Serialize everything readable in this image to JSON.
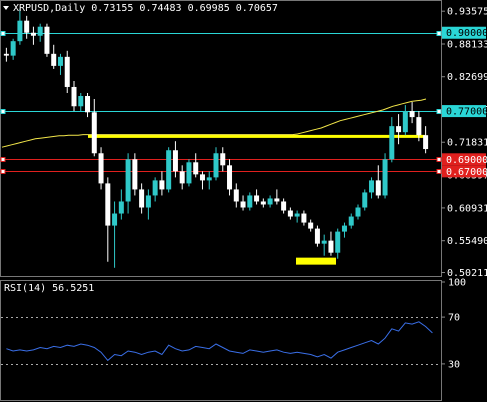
{
  "chart_data": [
    {
      "type": "candlestick",
      "symbol": "XRPUSD",
      "timeframe": "Daily",
      "header_text": "XRPUSD,Daily  0.73155 0.74483 0.69985 0.70657",
      "ohlc_last": {
        "open": 0.73155,
        "high": 0.74483,
        "low": 0.69985,
        "close": 0.70657
      },
      "price_range": [
        0.498,
        0.951
      ],
      "y_tick_labels": [
        "0.93575",
        "0.88133",
        "0.82699",
        "0.77265",
        "0.71831",
        "0.66397",
        "0.60931",
        "0.55490",
        "0.50211"
      ],
      "y_tick_values": [
        0.93575,
        0.88133,
        0.82699,
        0.77265,
        0.71831,
        0.66397,
        0.60931,
        0.5549,
        0.50211
      ],
      "horizontal_levels": [
        {
          "value": 0.9,
          "label": "0.90000",
          "color": "#2ad6d6"
        },
        {
          "value": 0.77,
          "label": "0.77000",
          "color": "#2ad6d6"
        },
        {
          "value": 0.69,
          "label": "0.69000",
          "color": "#e0201e"
        },
        {
          "value": 0.67,
          "label": "0.67000",
          "color": "#e0201e"
        }
      ],
      "zones": [
        {
          "from": 0,
          "to": 80,
          "value": 0.728,
          "color": "#ffff00"
        },
        {
          "from": 66,
          "to": 74,
          "value": 0.521,
          "color": "#ffff00"
        }
      ],
      "moving_average": [
        0.71,
        0.712,
        0.714,
        0.716,
        0.718,
        0.72,
        0.722,
        0.724,
        0.725,
        0.726,
        0.727,
        0.728,
        0.729,
        0.729,
        0.73,
        0.73,
        0.73,
        0.731,
        0.731,
        0.731,
        0.731,
        0.731,
        0.731,
        0.731,
        0.731,
        0.731,
        0.731,
        0.731,
        0.731,
        0.731,
        0.731,
        0.731,
        0.731,
        0.731,
        0.731,
        0.731,
        0.731,
        0.731,
        0.731,
        0.731,
        0.731,
        0.731,
        0.731,
        0.731,
        0.731,
        0.731,
        0.731,
        0.731,
        0.731,
        0.731,
        0.731,
        0.731,
        0.731,
        0.731,
        0.731,
        0.731,
        0.731,
        0.731,
        0.731,
        0.731,
        0.731,
        0.731,
        0.732,
        0.734,
        0.736,
        0.738,
        0.74,
        0.742,
        0.745,
        0.748,
        0.751,
        0.754,
        0.756,
        0.758,
        0.76,
        0.762,
        0.764,
        0.766,
        0.768,
        0.77,
        0.772,
        0.775,
        0.778,
        0.78,
        0.782,
        0.784,
        0.786,
        0.787,
        0.788,
        0.79
      ],
      "ma_color": "#f2e64a",
      "bull_color": "#2fc9c9",
      "bear_color": "#ffffff",
      "candles": [
        [
          0.865,
          0.875,
          0.852,
          0.862
        ],
        [
          0.862,
          0.89,
          0.855,
          0.886
        ],
        [
          0.886,
          0.94,
          0.88,
          0.92
        ],
        [
          0.92,
          0.928,
          0.89,
          0.9
        ],
        [
          0.9,
          0.91,
          0.88,
          0.895
        ],
        [
          0.895,
          0.915,
          0.885,
          0.91
        ],
        [
          0.91,
          0.915,
          0.86,
          0.865
        ],
        [
          0.865,
          0.88,
          0.84,
          0.845
        ],
        [
          0.845,
          0.865,
          0.83,
          0.86
        ],
        [
          0.86,
          0.87,
          0.8,
          0.81
        ],
        [
          0.81,
          0.82,
          0.77,
          0.778
        ],
        [
          0.778,
          0.8,
          0.77,
          0.795
        ],
        [
          0.795,
          0.8,
          0.76,
          0.768
        ],
        [
          0.768,
          0.79,
          0.695,
          0.7
        ],
        [
          0.7,
          0.71,
          0.64,
          0.65
        ],
        [
          0.65,
          0.66,
          0.52,
          0.58
        ],
        [
          0.58,
          0.62,
          0.51,
          0.6
        ],
        [
          0.6,
          0.64,
          0.59,
          0.62
        ],
        [
          0.62,
          0.7,
          0.6,
          0.69
        ],
        [
          0.69,
          0.7,
          0.63,
          0.64
        ],
        [
          0.64,
          0.65,
          0.6,
          0.61
        ],
        [
          0.61,
          0.64,
          0.59,
          0.63
        ],
        [
          0.63,
          0.66,
          0.62,
          0.655
        ],
        [
          0.655,
          0.67,
          0.63,
          0.64
        ],
        [
          0.64,
          0.71,
          0.635,
          0.705
        ],
        [
          0.705,
          0.72,
          0.66,
          0.67
        ],
        [
          0.67,
          0.68,
          0.64,
          0.65
        ],
        [
          0.65,
          0.69,
          0.645,
          0.685
        ],
        [
          0.685,
          0.7,
          0.66,
          0.665
        ],
        [
          0.665,
          0.67,
          0.64,
          0.655
        ],
        [
          0.655,
          0.67,
          0.64,
          0.66
        ],
        [
          0.66,
          0.71,
          0.655,
          0.7
        ],
        [
          0.7,
          0.71,
          0.67,
          0.68
        ],
        [
          0.68,
          0.69,
          0.63,
          0.64
        ],
        [
          0.64,
          0.65,
          0.61,
          0.62
        ],
        [
          0.62,
          0.63,
          0.605,
          0.61
        ],
        [
          0.61,
          0.635,
          0.605,
          0.63
        ],
        [
          0.63,
          0.64,
          0.615,
          0.62
        ],
        [
          0.62,
          0.625,
          0.61,
          0.615
        ],
        [
          0.615,
          0.63,
          0.61,
          0.625
        ],
        [
          0.625,
          0.64,
          0.615,
          0.62
        ],
        [
          0.62,
          0.625,
          0.6,
          0.605
        ],
        [
          0.605,
          0.61,
          0.59,
          0.595
        ],
        [
          0.595,
          0.605,
          0.585,
          0.6
        ],
        [
          0.6,
          0.605,
          0.58,
          0.585
        ],
        [
          0.585,
          0.59,
          0.57,
          0.575
        ],
        [
          0.575,
          0.58,
          0.545,
          0.55
        ],
        [
          0.55,
          0.565,
          0.53,
          0.555
        ],
        [
          0.555,
          0.57,
          0.53,
          0.535
        ],
        [
          0.535,
          0.575,
          0.525,
          0.57
        ],
        [
          0.57,
          0.585,
          0.56,
          0.58
        ],
        [
          0.58,
          0.6,
          0.575,
          0.595
        ],
        [
          0.595,
          0.615,
          0.59,
          0.61
        ],
        [
          0.61,
          0.64,
          0.605,
          0.635
        ],
        [
          0.635,
          0.66,
          0.625,
          0.655
        ],
        [
          0.655,
          0.68,
          0.625,
          0.63
        ],
        [
          0.63,
          0.7,
          0.625,
          0.69
        ],
        [
          0.69,
          0.76,
          0.685,
          0.745
        ],
        [
          0.745,
          0.765,
          0.715,
          0.735
        ],
        [
          0.735,
          0.78,
          0.73,
          0.77
        ],
        [
          0.77,
          0.785,
          0.75,
          0.76
        ],
        [
          0.76,
          0.77,
          0.72,
          0.73
        ],
        [
          0.73,
          0.745,
          0.7,
          0.707
        ]
      ],
      "grid": false,
      "background": "#000000"
    },
    {
      "type": "line",
      "title": "RSI(14) 56.5251",
      "y_tick_labels": [
        "100",
        "70",
        "30"
      ],
      "y_tick_values": [
        100,
        70,
        30
      ],
      "ylim": [
        0,
        100
      ],
      "reference_levels": [
        70,
        30
      ],
      "line_color": "#3a6fe8",
      "values": [
        43,
        41,
        42,
        41,
        42,
        44,
        43,
        45,
        44,
        46,
        45,
        47,
        46,
        44,
        40,
        33,
        38,
        37,
        41,
        40,
        38,
        40,
        41,
        38,
        46,
        43,
        41,
        42,
        45,
        44,
        43,
        47,
        44,
        41,
        40,
        39,
        42,
        41,
        40,
        41,
        42,
        40,
        39,
        40,
        39,
        38,
        36,
        38,
        35,
        40,
        42,
        44,
        46,
        48,
        50,
        47,
        52,
        60,
        58,
        65,
        64,
        66,
        62,
        56.5
      ]
    }
  ]
}
